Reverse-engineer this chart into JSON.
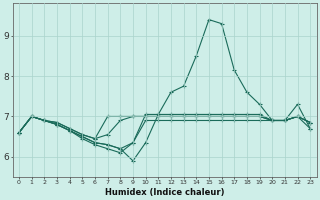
{
  "xlabel": "Humidex (Indice chaleur)",
  "background_color": "#ceeee8",
  "line_color": "#1a6b5a",
  "grid_color": "#aad4cc",
  "xlim": [
    -0.5,
    23.5
  ],
  "ylim": [
    5.5,
    9.8
  ],
  "yticks": [
    6,
    7,
    8,
    9
  ],
  "xticks": [
    0,
    1,
    2,
    3,
    4,
    5,
    6,
    7,
    8,
    9,
    10,
    11,
    12,
    13,
    14,
    15,
    16,
    17,
    18,
    19,
    20,
    21,
    22,
    23
  ],
  "series": [
    {
      "y": [
        6.6,
        7.0,
        6.9,
        6.8,
        6.65,
        6.5,
        6.35,
        6.3,
        6.2,
        5.9,
        6.35,
        7.05,
        7.6,
        7.75,
        8.5,
        9.4,
        9.3,
        8.15,
        7.6,
        7.3,
        6.9,
        6.9,
        7.3,
        6.7
      ]
    },
    {
      "y": [
        6.6,
        7.0,
        6.9,
        6.8,
        6.65,
        6.5,
        6.35,
        6.3,
        6.2,
        6.35,
        7.05,
        7.05,
        7.05,
        7.05,
        7.05,
        7.05,
        7.05,
        7.05,
        7.05,
        7.05,
        6.9,
        6.9,
        7.0,
        6.7
      ]
    },
    {
      "y": [
        6.6,
        7.0,
        6.9,
        6.85,
        6.7,
        6.55,
        6.45,
        7.0,
        7.0,
        7.0,
        7.0,
        7.0,
        7.0,
        7.0,
        7.0,
        7.0,
        7.0,
        7.0,
        7.0,
        7.0,
        6.9,
        6.9,
        7.0,
        6.85
      ]
    },
    {
      "y": [
        6.6,
        7.0,
        6.9,
        6.85,
        6.7,
        6.55,
        6.45,
        6.55,
        6.9,
        7.0,
        7.0,
        7.0,
        7.0,
        7.0,
        7.0,
        7.0,
        7.0,
        7.0,
        7.0,
        7.0,
        6.9,
        6.9,
        7.0,
        6.85
      ]
    },
    {
      "y": [
        6.6,
        7.0,
        6.9,
        6.8,
        6.65,
        6.45,
        6.3,
        6.2,
        6.1,
        6.35,
        6.9,
        6.9,
        6.9,
        6.9,
        6.9,
        6.9,
        6.9,
        6.9,
        6.9,
        6.9,
        6.9,
        6.9,
        7.0,
        6.85
      ]
    }
  ]
}
